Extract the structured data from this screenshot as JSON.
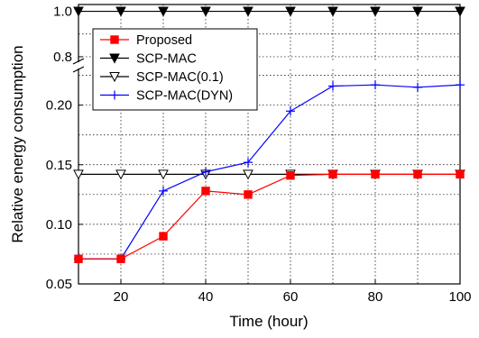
{
  "chart_data": {
    "type": "line",
    "title": "",
    "xlabel": "Time (hour)",
    "ylabel": "Relative energy consumption",
    "xlim": [
      10,
      100
    ],
    "x_ticks": [
      "20",
      "40",
      "60",
      "80",
      "100"
    ],
    "y_axis_break": {
      "lower_range": [
        0.05,
        0.23
      ],
      "upper_range": [
        0.78,
        1.03
      ],
      "lower_ticks": [
        "0.05",
        "0.10",
        "0.15",
        "0.20"
      ],
      "upper_ticks": [
        "0.8",
        "1.0"
      ]
    },
    "grid": "dotted",
    "legend_position": "top-left",
    "x": [
      10,
      20,
      30,
      40,
      50,
      60,
      70,
      80,
      90,
      100
    ],
    "series": [
      {
        "name": "Proposed",
        "marker": "filled-square",
        "color": "#ff0000",
        "values": [
          0.071,
          0.071,
          0.09,
          0.128,
          0.125,
          0.141,
          0.142,
          0.142,
          0.142,
          0.142
        ]
      },
      {
        "name": "SCP-MAC",
        "marker": "filled-triangle-down",
        "color": "#000000",
        "values": [
          1.0,
          1.0,
          1.0,
          1.0,
          1.0,
          1.0,
          1.0,
          1.0,
          1.0,
          1.0
        ]
      },
      {
        "name": "SCP-MAC(0.1)",
        "marker": "open-triangle-down",
        "color": "#000000",
        "values": [
          0.142,
          0.142,
          0.142,
          0.142,
          0.142,
          0.142,
          0.142,
          0.142,
          0.142,
          0.142
        ]
      },
      {
        "name": "SCP-MAC(DYN)",
        "marker": "plus",
        "color": "#0000ff",
        "values": [
          0.071,
          0.071,
          0.128,
          0.144,
          0.152,
          0.195,
          0.216,
          0.217,
          0.215,
          0.217
        ]
      }
    ]
  }
}
